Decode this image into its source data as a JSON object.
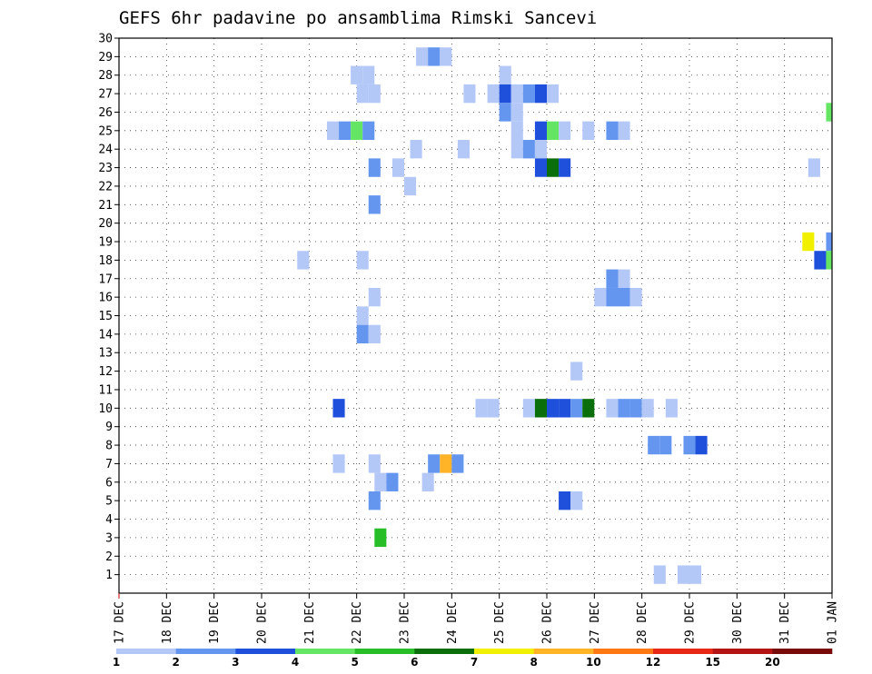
{
  "chart_data": {
    "type": "heatmap",
    "title": "GEFS 6hr padavine po ansamblima Rimski Sancevi",
    "xlabel": "",
    "ylabel": "",
    "x_tick_labels": [
      "17 DEC",
      "18 DEC",
      "19 DEC",
      "20 DEC",
      "21 DEC",
      "22 DEC",
      "23 DEC",
      "24 DEC",
      "25 DEC",
      "26 DEC",
      "27 DEC",
      "28 DEC",
      "29 DEC",
      "30 DEC",
      "31 DEC",
      "01 JAN"
    ],
    "y_tick_labels": [
      "1",
      "2",
      "3",
      "4",
      "5",
      "6",
      "7",
      "8",
      "9",
      "10",
      "11",
      "12",
      "13",
      "14",
      "15",
      "16",
      "17",
      "18",
      "19",
      "20",
      "21",
      "22",
      "23",
      "24",
      "25",
      "26",
      "27",
      "28",
      "29",
      "30"
    ],
    "x_range_steps": [
      0,
      60
    ],
    "x_step_hours": 6,
    "ylim": [
      0,
      30
    ],
    "grid": true,
    "colorbar": {
      "labels": [
        "1",
        "2",
        "3",
        "4",
        "5",
        "6",
        "7",
        "8",
        "10",
        "12",
        "15",
        "20"
      ],
      "colors": [
        "#b4c8f8",
        "#6496f0",
        "#1e50dc",
        "#64e664",
        "#28be28",
        "#0a6e0a",
        "#f0f000",
        "#ffb428",
        "#ff7814",
        "#e62814",
        "#b41414",
        "#780a0a"
      ]
    },
    "cells": [
      {
        "t": 25,
        "m": 29,
        "v": 1.5
      },
      {
        "t": 26,
        "m": 29,
        "v": 2.5
      },
      {
        "t": 27,
        "m": 29,
        "v": 1.5
      },
      {
        "t": 19.5,
        "m": 28,
        "v": 1.5
      },
      {
        "t": 20.5,
        "m": 28,
        "v": 1.5
      },
      {
        "t": 32,
        "m": 28,
        "v": 1.5
      },
      {
        "t": 20,
        "m": 27,
        "v": 1.5
      },
      {
        "t": 21,
        "m": 27,
        "v": 1.5
      },
      {
        "t": 29,
        "m": 27,
        "v": 1.5
      },
      {
        "t": 31,
        "m": 27,
        "v": 1.5
      },
      {
        "t": 32,
        "m": 27,
        "v": 3.5
      },
      {
        "t": 33,
        "m": 27,
        "v": 1.5
      },
      {
        "t": 34,
        "m": 27,
        "v": 2.5
      },
      {
        "t": 35,
        "m": 27,
        "v": 3.5
      },
      {
        "t": 36,
        "m": 27,
        "v": 1.5
      },
      {
        "t": 59.5,
        "m": 26,
        "v": 4.5
      },
      {
        "t": 32,
        "m": 26,
        "v": 2.5
      },
      {
        "t": 33,
        "m": 26,
        "v": 1.5
      },
      {
        "t": 17.5,
        "m": 25,
        "v": 1.5
      },
      {
        "t": 18.5,
        "m": 25,
        "v": 2.5
      },
      {
        "t": 19.5,
        "m": 25,
        "v": 4.5
      },
      {
        "t": 20.5,
        "m": 25,
        "v": 2.5
      },
      {
        "t": 33,
        "m": 25,
        "v": 1.5
      },
      {
        "t": 35,
        "m": 25,
        "v": 3.5
      },
      {
        "t": 36,
        "m": 25,
        "v": 4.5
      },
      {
        "t": 37,
        "m": 25,
        "v": 1.5
      },
      {
        "t": 39,
        "m": 25,
        "v": 1.5
      },
      {
        "t": 41,
        "m": 25,
        "v": 2.5
      },
      {
        "t": 42,
        "m": 25,
        "v": 1.5
      },
      {
        "t": 24.5,
        "m": 24,
        "v": 1.5
      },
      {
        "t": 28.5,
        "m": 24,
        "v": 1.5
      },
      {
        "t": 33,
        "m": 24,
        "v": 1.5
      },
      {
        "t": 34,
        "m": 24,
        "v": 2.5
      },
      {
        "t": 35,
        "m": 24,
        "v": 1.5
      },
      {
        "t": 21,
        "m": 23,
        "v": 2.5
      },
      {
        "t": 23,
        "m": 23,
        "v": 1.5
      },
      {
        "t": 35,
        "m": 23,
        "v": 3.5
      },
      {
        "t": 36,
        "m": 23,
        "v": 6.5
      },
      {
        "t": 37,
        "m": 23,
        "v": 3.5
      },
      {
        "t": 58,
        "m": 23,
        "v": 1.5
      },
      {
        "t": 24,
        "m": 22,
        "v": 1.5
      },
      {
        "t": 21,
        "m": 21,
        "v": 2.5
      },
      {
        "t": 57.5,
        "m": 19,
        "v": 7.5
      },
      {
        "t": 59.5,
        "m": 19,
        "v": 2.5
      },
      {
        "t": 15,
        "m": 18,
        "v": 1.5
      },
      {
        "t": 20,
        "m": 18,
        "v": 1.5
      },
      {
        "t": 58.5,
        "m": 18,
        "v": 3.5
      },
      {
        "t": 59.5,
        "m": 18,
        "v": 4.5
      },
      {
        "t": 41,
        "m": 17,
        "v": 2.5
      },
      {
        "t": 42,
        "m": 17,
        "v": 1.5
      },
      {
        "t": 21,
        "m": 16,
        "v": 1.5
      },
      {
        "t": 40,
        "m": 16,
        "v": 1.5
      },
      {
        "t": 41,
        "m": 16,
        "v": 2.5
      },
      {
        "t": 42,
        "m": 16,
        "v": 2.5
      },
      {
        "t": 43,
        "m": 16,
        "v": 1.5
      },
      {
        "t": 20,
        "m": 15,
        "v": 1.5
      },
      {
        "t": 20,
        "m": 14,
        "v": 2.5
      },
      {
        "t": 21,
        "m": 14,
        "v": 1.5
      },
      {
        "t": 38,
        "m": 12,
        "v": 1.5
      },
      {
        "t": 18,
        "m": 10,
        "v": 3.5
      },
      {
        "t": 30,
        "m": 10,
        "v": 1.5
      },
      {
        "t": 31,
        "m": 10,
        "v": 1.5
      },
      {
        "t": 34,
        "m": 10,
        "v": 1.5
      },
      {
        "t": 35,
        "m": 10,
        "v": 6.5
      },
      {
        "t": 36,
        "m": 10,
        "v": 3.5
      },
      {
        "t": 37,
        "m": 10,
        "v": 3.5
      },
      {
        "t": 38,
        "m": 10,
        "v": 2.5
      },
      {
        "t": 39,
        "m": 10,
        "v": 6.5
      },
      {
        "t": 41,
        "m": 10,
        "v": 1.5
      },
      {
        "t": 42,
        "m": 10,
        "v": 2.5
      },
      {
        "t": 43,
        "m": 10,
        "v": 2.5
      },
      {
        "t": 44,
        "m": 10,
        "v": 1.5
      },
      {
        "t": 46,
        "m": 10,
        "v": 1.5
      },
      {
        "t": 44.5,
        "m": 8,
        "v": 2.5
      },
      {
        "t": 45.5,
        "m": 8,
        "v": 2.5
      },
      {
        "t": 47.5,
        "m": 8,
        "v": 2.5
      },
      {
        "t": 48.5,
        "m": 8,
        "v": 3.5
      },
      {
        "t": 18,
        "m": 7,
        "v": 1.5
      },
      {
        "t": 21,
        "m": 7,
        "v": 1.5
      },
      {
        "t": 26,
        "m": 7,
        "v": 2.5
      },
      {
        "t": 27,
        "m": 7,
        "v": 8.5
      },
      {
        "t": 28,
        "m": 7,
        "v": 2.5
      },
      {
        "t": 21.5,
        "m": 6,
        "v": 1.5
      },
      {
        "t": 22.5,
        "m": 6,
        "v": 2.5
      },
      {
        "t": 25.5,
        "m": 6,
        "v": 1.5
      },
      {
        "t": 21,
        "m": 5,
        "v": 2.5
      },
      {
        "t": 37,
        "m": 5,
        "v": 3.5
      },
      {
        "t": 38,
        "m": 5,
        "v": 1.5
      },
      {
        "t": 21.5,
        "m": 3,
        "v": 5.5
      },
      {
        "t": 45,
        "m": 1,
        "v": 1.5
      },
      {
        "t": 47,
        "m": 1,
        "v": 1.5
      },
      {
        "t": 48,
        "m": 1,
        "v": 1.5
      }
    ]
  }
}
